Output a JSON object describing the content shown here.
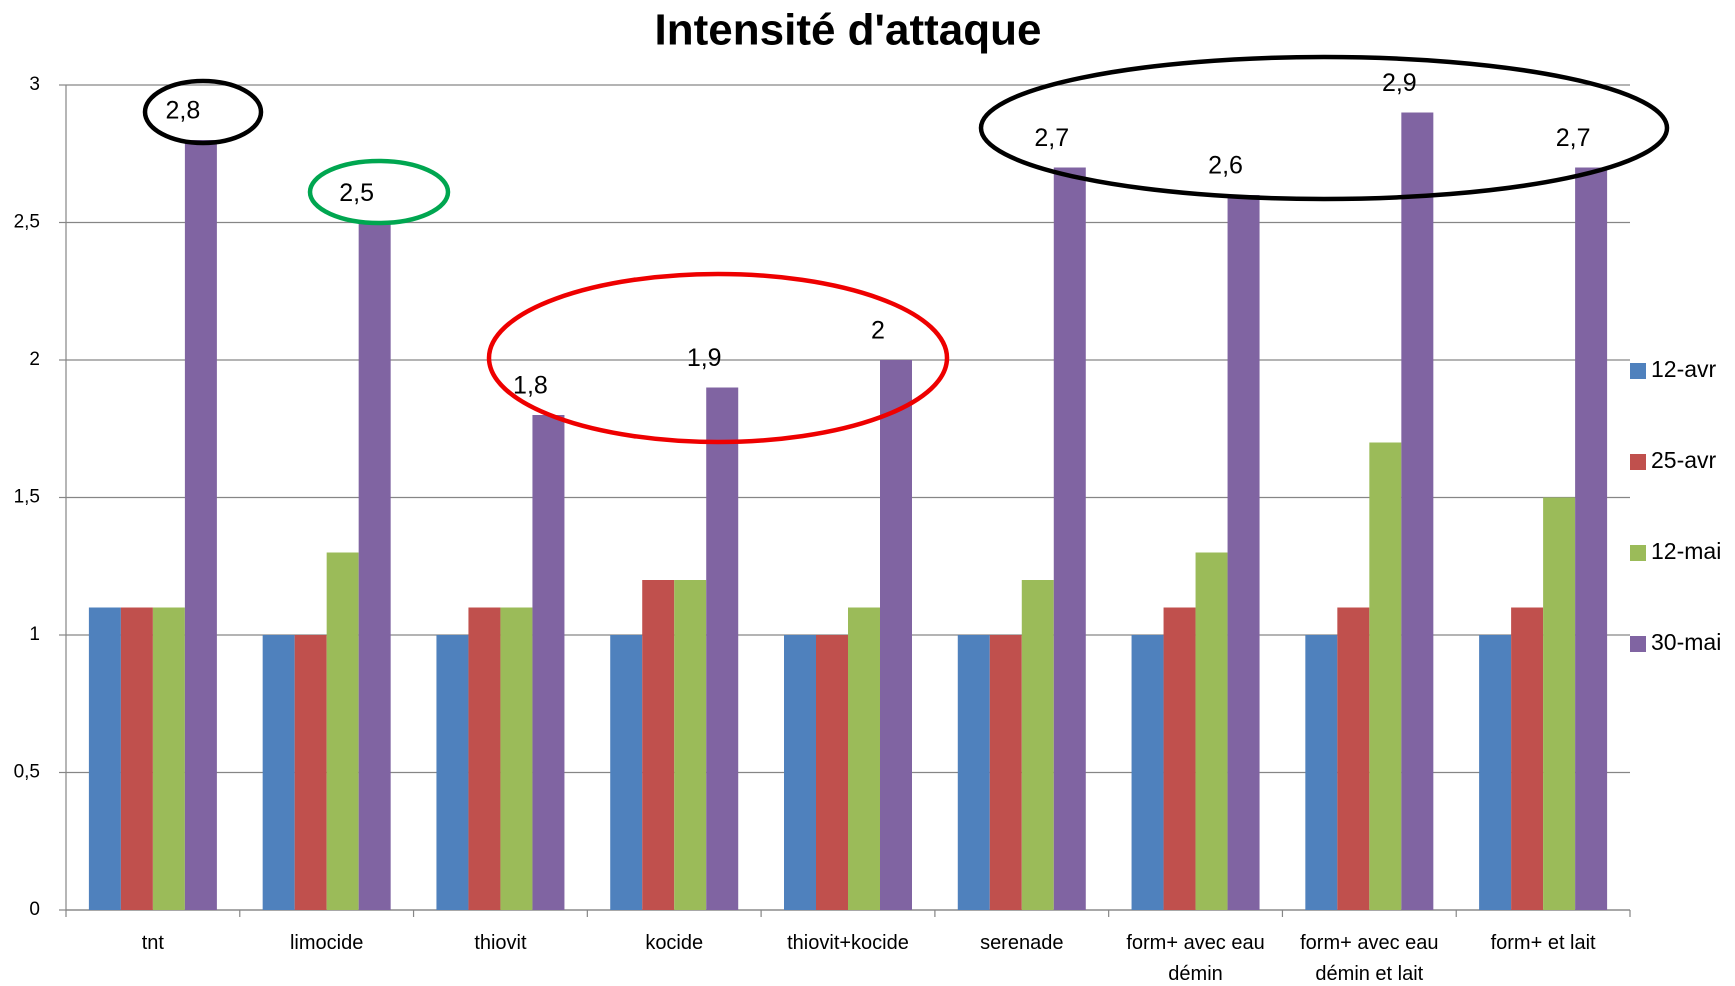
{
  "chart_data": {
    "type": "bar",
    "title": "Intensité d'attaque",
    "categories": [
      "tnt",
      "limocide",
      "thiovit",
      "kocide",
      "thiovit+kocide",
      "serenade",
      "form+ avec eau démin",
      "form+ avec eau démin et lait",
      "form+ et lait"
    ],
    "series": [
      {
        "name": "12-avr",
        "color": "#4f81bd",
        "values": [
          1.1,
          1,
          1,
          1,
          1,
          1,
          1,
          1,
          1
        ]
      },
      {
        "name": "25-avr",
        "color": "#c0504d",
        "values": [
          1.1,
          1,
          1.1,
          1.2,
          1,
          1,
          1.1,
          1.1,
          1.1
        ]
      },
      {
        "name": "12-mai",
        "color": "#9bbb59",
        "values": [
          1.1,
          1.3,
          1.1,
          1.2,
          1.1,
          1.2,
          1.3,
          1.7,
          1.5
        ]
      },
      {
        "name": "30-mai",
        "color": "#8064a2",
        "values": [
          2.8,
          2.5,
          1.8,
          1.9,
          2,
          2.7,
          2.6,
          2.9,
          2.7
        ],
        "value_labels": [
          "2,8",
          "2,5",
          "1,8",
          "1,9",
          "2",
          "2,7",
          "2,6",
          "2,9",
          "2,7"
        ]
      }
    ],
    "ylim": [
      0,
      3
    ],
    "yticks": [
      0,
      {
        "value": 0.5,
        "label": "0,5"
      },
      1,
      {
        "value": 1.5,
        "label": "1,5"
      },
      2,
      {
        "value": 2.5,
        "label": "2,5"
      },
      3
    ],
    "grid": true,
    "legend": "right"
  }
}
